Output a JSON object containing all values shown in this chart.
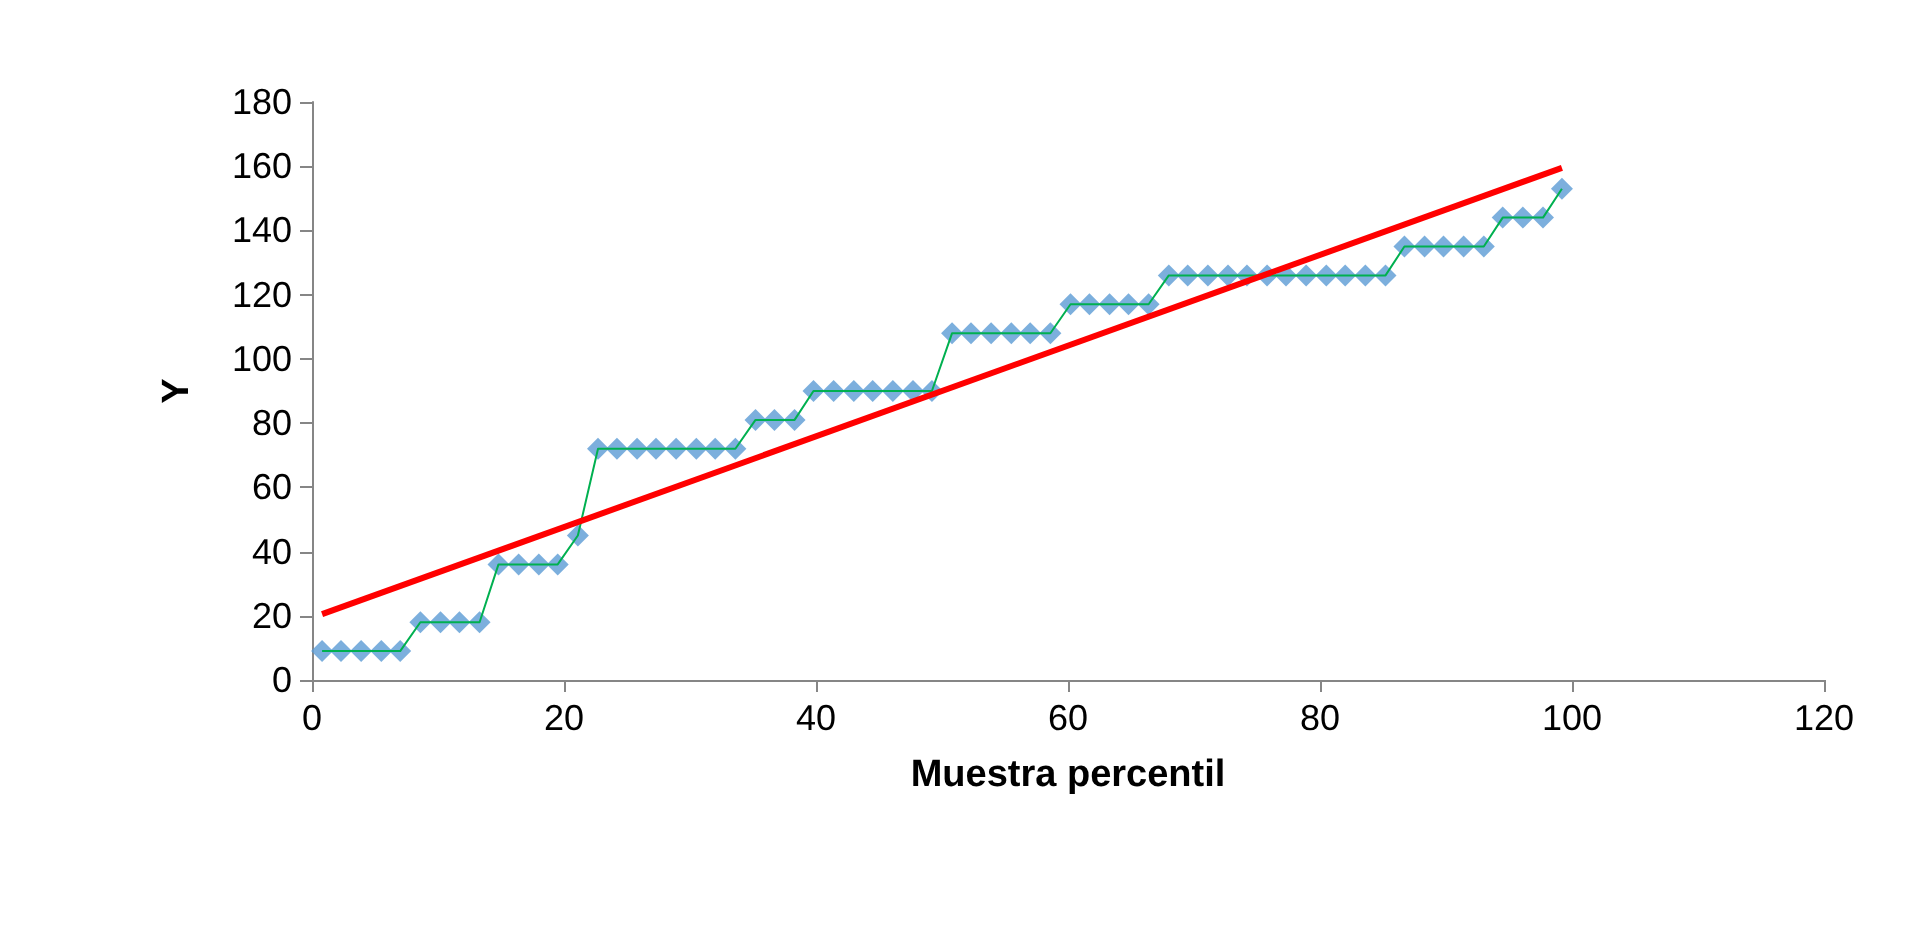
{
  "chart_data": {
    "type": "line",
    "xlabel": "Muestra percentil",
    "ylabel": "Y",
    "x": [
      0.8,
      2.3,
      3.9,
      5.5,
      7.0,
      8.6,
      10.2,
      11.7,
      13.3,
      14.8,
      16.4,
      18.0,
      19.5,
      21.1,
      22.7,
      24.2,
      25.8,
      27.3,
      28.9,
      30.5,
      32.0,
      33.6,
      35.2,
      36.7,
      38.3,
      39.8,
      41.4,
      43.0,
      44.5,
      46.1,
      47.7,
      49.2,
      50.8,
      52.3,
      53.9,
      55.5,
      57.0,
      58.6,
      60.2,
      61.7,
      63.3,
      64.8,
      66.4,
      68.0,
      69.5,
      71.1,
      72.7,
      74.2,
      75.8,
      77.3,
      78.9,
      80.5,
      82.0,
      83.6,
      85.2,
      86.7,
      88.3,
      89.8,
      91.4,
      93.0,
      94.5,
      96.1,
      97.7,
      99.2
    ],
    "series": [
      {
        "color": "#00b050",
        "marker": "none",
        "values": [
          9,
          9,
          9,
          9,
          9,
          18,
          18,
          18,
          18,
          36,
          36,
          36,
          36,
          45,
          72,
          72,
          72,
          72,
          72,
          72,
          72,
          72,
          81,
          81,
          81,
          90,
          90,
          90,
          90,
          90,
          90,
          90,
          108,
          108,
          108,
          108,
          108,
          108,
          117,
          117,
          117,
          117,
          117,
          126,
          126,
          126,
          126,
          126,
          126,
          126,
          126,
          126,
          126,
          126,
          126,
          135,
          135,
          135,
          135,
          135,
          144,
          144,
          144,
          153
        ]
      },
      {
        "type": "scatter",
        "color": "#5b9bd5",
        "marker": "diamond",
        "values": [
          9,
          9,
          9,
          9,
          9,
          18,
          18,
          18,
          18,
          36,
          36,
          36,
          36,
          45,
          72,
          72,
          72,
          72,
          72,
          72,
          72,
          72,
          81,
          81,
          81,
          90,
          90,
          90,
          90,
          90,
          90,
          90,
          108,
          108,
          108,
          108,
          108,
          108,
          117,
          117,
          117,
          117,
          117,
          126,
          126,
          126,
          126,
          126,
          126,
          126,
          126,
          126,
          126,
          126,
          126,
          135,
          135,
          135,
          135,
          135,
          144,
          144,
          144,
          153
        ]
      },
      {
        "type": "line",
        "color": "#ff0000",
        "marker": "none",
        "x": [
          0.8,
          99.2
        ],
        "values": [
          20.5,
          159.5
        ]
      }
    ],
    "xlim": [
      0,
      120
    ],
    "xticks": [
      0,
      20,
      40,
      60,
      80,
      100,
      120
    ],
    "ylim": [
      0,
      180
    ],
    "yticks": [
      0,
      20,
      40,
      60,
      80,
      100,
      120,
      140,
      160,
      180
    ],
    "grid": false
  }
}
